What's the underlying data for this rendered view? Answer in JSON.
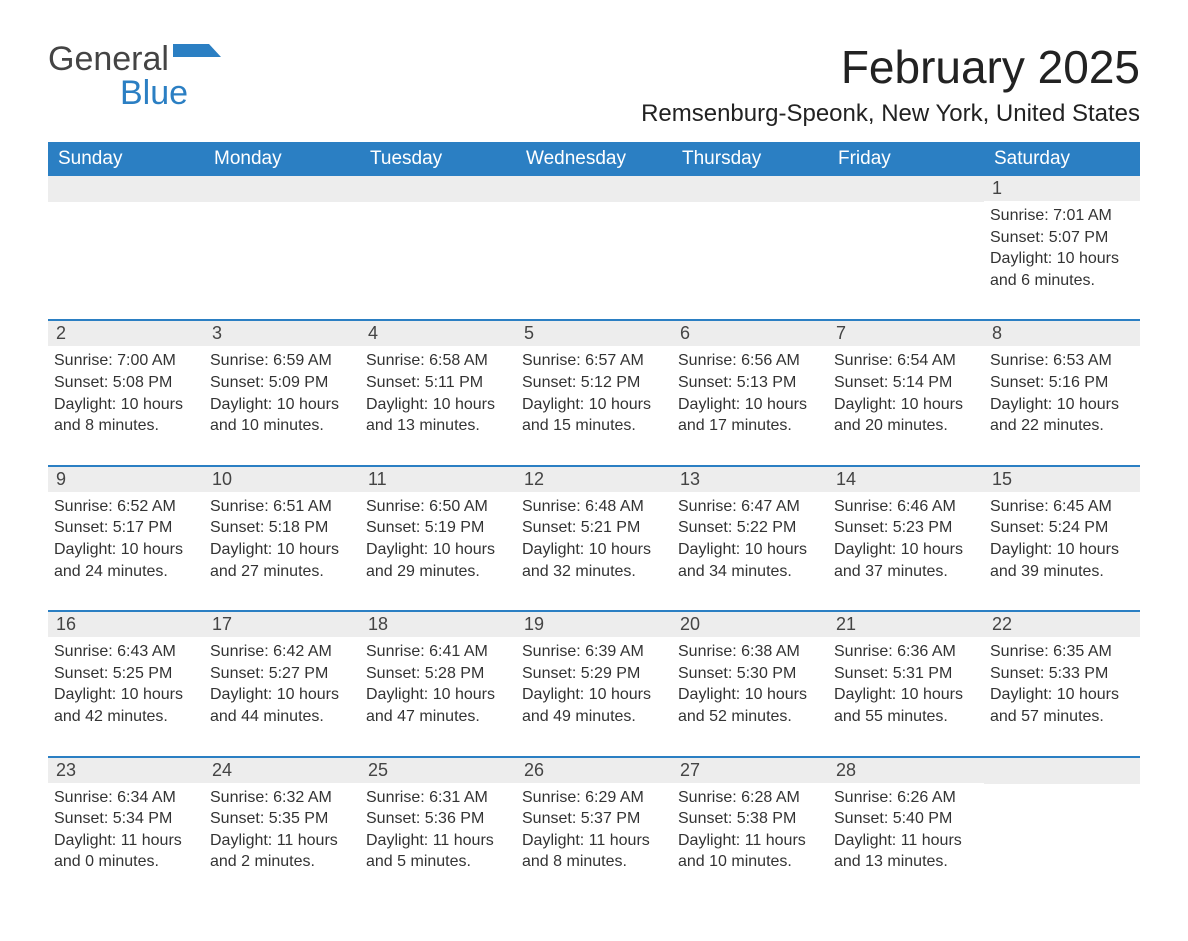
{
  "logo": {
    "text1": "General",
    "text2": "Blue",
    "shape_color": "#2b7fc3"
  },
  "title": "February 2025",
  "location": "Remsenburg-Speonk, New York, United States",
  "colors": {
    "header_bg": "#2b7fc3",
    "header_text": "#ffffff",
    "daynum_bg": "#ededed",
    "row_divider": "#2b7fc3",
    "body_text": "#333333",
    "page_bg": "#ffffff"
  },
  "day_headers": [
    "Sunday",
    "Monday",
    "Tuesday",
    "Wednesday",
    "Thursday",
    "Friday",
    "Saturday"
  ],
  "weeks": [
    [
      {
        "n": "",
        "sunrise": "",
        "sunset": "",
        "daylight": ""
      },
      {
        "n": "",
        "sunrise": "",
        "sunset": "",
        "daylight": ""
      },
      {
        "n": "",
        "sunrise": "",
        "sunset": "",
        "daylight": ""
      },
      {
        "n": "",
        "sunrise": "",
        "sunset": "",
        "daylight": ""
      },
      {
        "n": "",
        "sunrise": "",
        "sunset": "",
        "daylight": ""
      },
      {
        "n": "",
        "sunrise": "",
        "sunset": "",
        "daylight": ""
      },
      {
        "n": "1",
        "sunrise": "Sunrise: 7:01 AM",
        "sunset": "Sunset: 5:07 PM",
        "daylight": "Daylight: 10 hours and 6 minutes."
      }
    ],
    [
      {
        "n": "2",
        "sunrise": "Sunrise: 7:00 AM",
        "sunset": "Sunset: 5:08 PM",
        "daylight": "Daylight: 10 hours and 8 minutes."
      },
      {
        "n": "3",
        "sunrise": "Sunrise: 6:59 AM",
        "sunset": "Sunset: 5:09 PM",
        "daylight": "Daylight: 10 hours and 10 minutes."
      },
      {
        "n": "4",
        "sunrise": "Sunrise: 6:58 AM",
        "sunset": "Sunset: 5:11 PM",
        "daylight": "Daylight: 10 hours and 13 minutes."
      },
      {
        "n": "5",
        "sunrise": "Sunrise: 6:57 AM",
        "sunset": "Sunset: 5:12 PM",
        "daylight": "Daylight: 10 hours and 15 minutes."
      },
      {
        "n": "6",
        "sunrise": "Sunrise: 6:56 AM",
        "sunset": "Sunset: 5:13 PM",
        "daylight": "Daylight: 10 hours and 17 minutes."
      },
      {
        "n": "7",
        "sunrise": "Sunrise: 6:54 AM",
        "sunset": "Sunset: 5:14 PM",
        "daylight": "Daylight: 10 hours and 20 minutes."
      },
      {
        "n": "8",
        "sunrise": "Sunrise: 6:53 AM",
        "sunset": "Sunset: 5:16 PM",
        "daylight": "Daylight: 10 hours and 22 minutes."
      }
    ],
    [
      {
        "n": "9",
        "sunrise": "Sunrise: 6:52 AM",
        "sunset": "Sunset: 5:17 PM",
        "daylight": "Daylight: 10 hours and 24 minutes."
      },
      {
        "n": "10",
        "sunrise": "Sunrise: 6:51 AM",
        "sunset": "Sunset: 5:18 PM",
        "daylight": "Daylight: 10 hours and 27 minutes."
      },
      {
        "n": "11",
        "sunrise": "Sunrise: 6:50 AM",
        "sunset": "Sunset: 5:19 PM",
        "daylight": "Daylight: 10 hours and 29 minutes."
      },
      {
        "n": "12",
        "sunrise": "Sunrise: 6:48 AM",
        "sunset": "Sunset: 5:21 PM",
        "daylight": "Daylight: 10 hours and 32 minutes."
      },
      {
        "n": "13",
        "sunrise": "Sunrise: 6:47 AM",
        "sunset": "Sunset: 5:22 PM",
        "daylight": "Daylight: 10 hours and 34 minutes."
      },
      {
        "n": "14",
        "sunrise": "Sunrise: 6:46 AM",
        "sunset": "Sunset: 5:23 PM",
        "daylight": "Daylight: 10 hours and 37 minutes."
      },
      {
        "n": "15",
        "sunrise": "Sunrise: 6:45 AM",
        "sunset": "Sunset: 5:24 PM",
        "daylight": "Daylight: 10 hours and 39 minutes."
      }
    ],
    [
      {
        "n": "16",
        "sunrise": "Sunrise: 6:43 AM",
        "sunset": "Sunset: 5:25 PM",
        "daylight": "Daylight: 10 hours and 42 minutes."
      },
      {
        "n": "17",
        "sunrise": "Sunrise: 6:42 AM",
        "sunset": "Sunset: 5:27 PM",
        "daylight": "Daylight: 10 hours and 44 minutes."
      },
      {
        "n": "18",
        "sunrise": "Sunrise: 6:41 AM",
        "sunset": "Sunset: 5:28 PM",
        "daylight": "Daylight: 10 hours and 47 minutes."
      },
      {
        "n": "19",
        "sunrise": "Sunrise: 6:39 AM",
        "sunset": "Sunset: 5:29 PM",
        "daylight": "Daylight: 10 hours and 49 minutes."
      },
      {
        "n": "20",
        "sunrise": "Sunrise: 6:38 AM",
        "sunset": "Sunset: 5:30 PM",
        "daylight": "Daylight: 10 hours and 52 minutes."
      },
      {
        "n": "21",
        "sunrise": "Sunrise: 6:36 AM",
        "sunset": "Sunset: 5:31 PM",
        "daylight": "Daylight: 10 hours and 55 minutes."
      },
      {
        "n": "22",
        "sunrise": "Sunrise: 6:35 AM",
        "sunset": "Sunset: 5:33 PM",
        "daylight": "Daylight: 10 hours and 57 minutes."
      }
    ],
    [
      {
        "n": "23",
        "sunrise": "Sunrise: 6:34 AM",
        "sunset": "Sunset: 5:34 PM",
        "daylight": "Daylight: 11 hours and 0 minutes."
      },
      {
        "n": "24",
        "sunrise": "Sunrise: 6:32 AM",
        "sunset": "Sunset: 5:35 PM",
        "daylight": "Daylight: 11 hours and 2 minutes."
      },
      {
        "n": "25",
        "sunrise": "Sunrise: 6:31 AM",
        "sunset": "Sunset: 5:36 PM",
        "daylight": "Daylight: 11 hours and 5 minutes."
      },
      {
        "n": "26",
        "sunrise": "Sunrise: 6:29 AM",
        "sunset": "Sunset: 5:37 PM",
        "daylight": "Daylight: 11 hours and 8 minutes."
      },
      {
        "n": "27",
        "sunrise": "Sunrise: 6:28 AM",
        "sunset": "Sunset: 5:38 PM",
        "daylight": "Daylight: 11 hours and 10 minutes."
      },
      {
        "n": "28",
        "sunrise": "Sunrise: 6:26 AM",
        "sunset": "Sunset: 5:40 PM",
        "daylight": "Daylight: 11 hours and 13 minutes."
      },
      {
        "n": "",
        "sunrise": "",
        "sunset": "",
        "daylight": ""
      }
    ]
  ]
}
